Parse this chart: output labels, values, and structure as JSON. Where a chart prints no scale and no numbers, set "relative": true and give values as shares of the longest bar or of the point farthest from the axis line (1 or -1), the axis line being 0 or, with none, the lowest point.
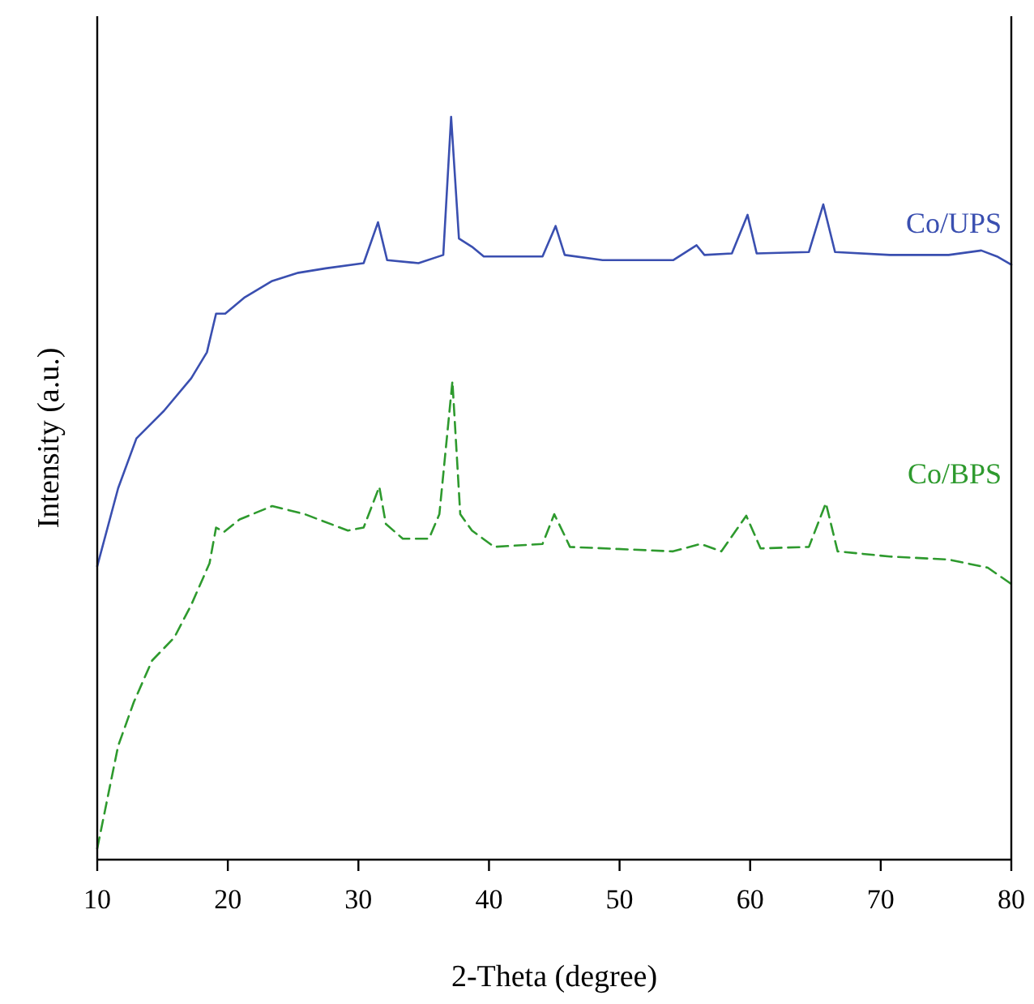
{
  "chart_data": {
    "type": "line",
    "relative": true,
    "xlabel": "2-Theta (degree)",
    "ylabel": "Intensity (a.u.)",
    "xlim": [
      10,
      80
    ],
    "xticks": [
      10,
      20,
      30,
      40,
      50,
      60,
      70,
      80
    ],
    "grid": false,
    "series": [
      {
        "name": "Co/UPS",
        "color": "#3a4fb0",
        "line_style": "solid",
        "x": [
          10,
          11.6,
          13.0,
          15.1,
          17.2,
          18.4,
          19.1,
          19.8,
          21.3,
          23.4,
          25.4,
          27.5,
          30.4,
          31.5,
          32.2,
          34.6,
          36.5,
          37.1,
          37.7,
          38.7,
          39.6,
          44.1,
          45.1,
          45.8,
          48.7,
          54.1,
          55.9,
          56.5,
          58.6,
          59.8,
          60.5,
          64.5,
          65.6,
          66.5,
          70.7,
          75.2,
          77.7,
          78.9,
          80
        ],
        "values": [
          0.395,
          0.5,
          0.567,
          0.604,
          0.648,
          0.683,
          0.735,
          0.735,
          0.757,
          0.779,
          0.79,
          0.796,
          0.803,
          0.858,
          0.807,
          0.803,
          0.814,
          1.0,
          0.836,
          0.825,
          0.812,
          0.812,
          0.853,
          0.814,
          0.807,
          0.807,
          0.827,
          0.814,
          0.816,
          0.868,
          0.816,
          0.818,
          0.882,
          0.818,
          0.814,
          0.814,
          0.82,
          0.812,
          0.801
        ]
      },
      {
        "name": "Co/BPS",
        "color": "#2e9a2e",
        "line_style": "dashed",
        "x": [
          10,
          11.6,
          12.8,
          14.2,
          15.9,
          17.2,
          18.6,
          19.1,
          19.7,
          20.9,
          23.4,
          25.9,
          29.2,
          30.4,
          31.6,
          32.1,
          33.4,
          35.4,
          36.2,
          37.2,
          37.8,
          38.7,
          40.4,
          44.1,
          45.0,
          45.8,
          46.2,
          54.1,
          56.2,
          57.8,
          59.7,
          60.8,
          64.5,
          65.8,
          66.7,
          70.7,
          75.2,
          78.2,
          80
        ],
        "values": [
          0.015,
          0.153,
          0.212,
          0.268,
          0.299,
          0.343,
          0.399,
          0.447,
          0.441,
          0.458,
          0.476,
          0.465,
          0.443,
          0.447,
          0.502,
          0.452,
          0.432,
          0.432,
          0.465,
          0.644,
          0.465,
          0.443,
          0.421,
          0.425,
          0.465,
          0.436,
          0.421,
          0.415,
          0.425,
          0.415,
          0.463,
          0.419,
          0.421,
          0.48,
          0.415,
          0.408,
          0.404,
          0.393,
          0.371
        ]
      }
    ]
  }
}
